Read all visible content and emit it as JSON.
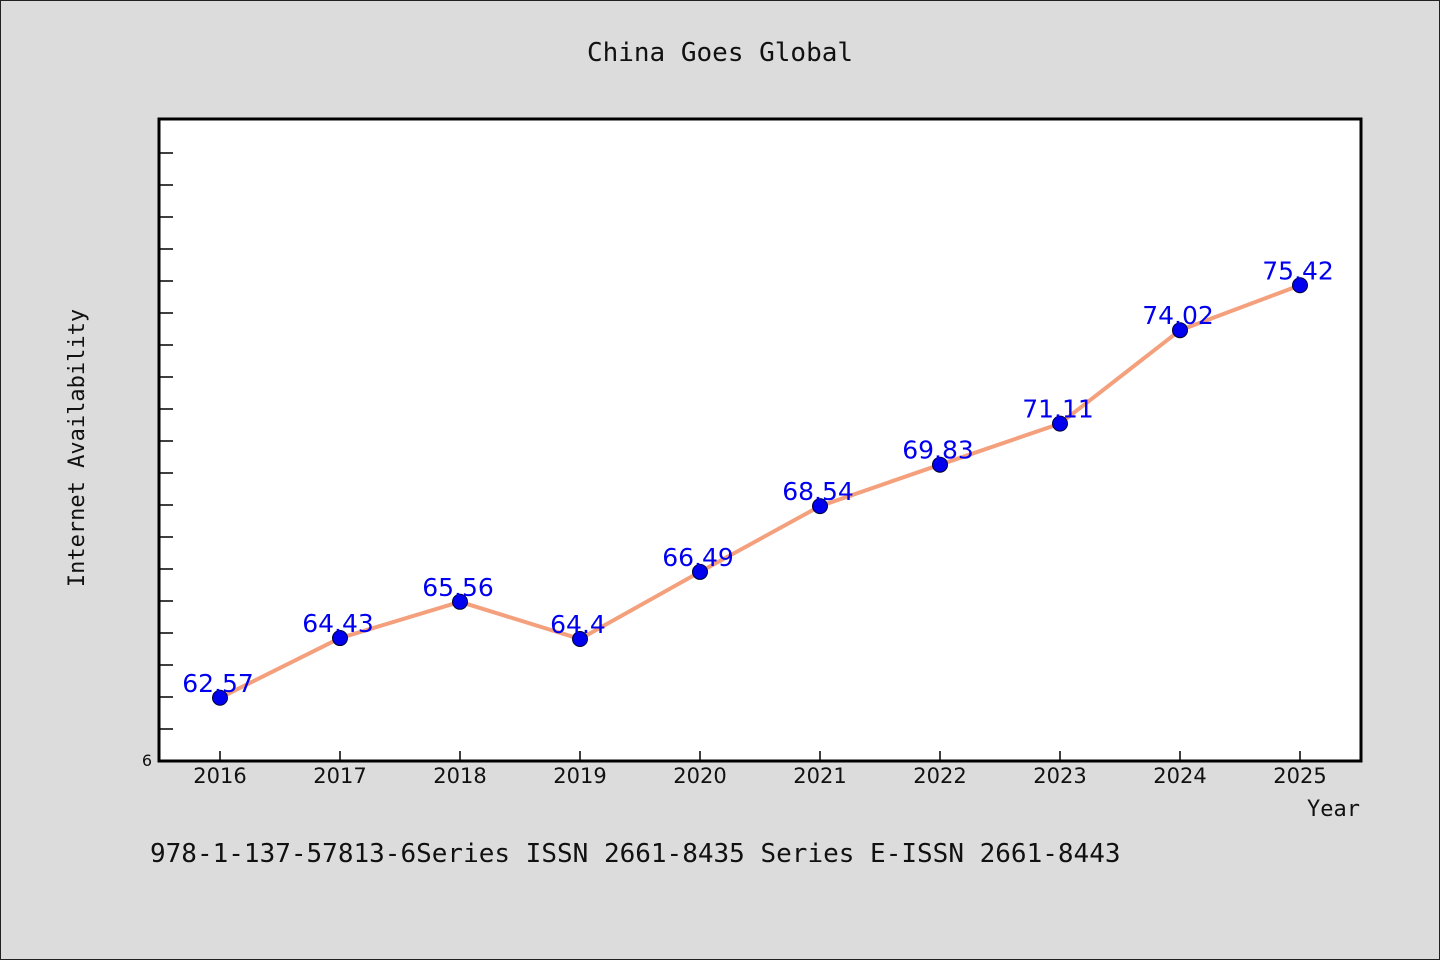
{
  "footer_text": "978-1-137-57813-6Series ISSN 2661-8435 Series E-ISSN 2661-8443",
  "chart_data": {
    "type": "line",
    "title": "China Goes Global",
    "xlabel": "Year",
    "ylabel": "Internet Availability",
    "categories": [
      "2016",
      "2017",
      "2018",
      "2019",
      "2020",
      "2021",
      "2022",
      "2023",
      "2024",
      "2025"
    ],
    "series": [
      {
        "values": [
          62.57,
          64.43,
          65.56,
          64.4,
          66.49,
          68.54,
          69.83,
          71.11,
          74.02,
          75.42
        ],
        "line_color": "#f4a07c",
        "marker_color": "#0000ee"
      }
    ],
    "data_labels": [
      "62.57",
      "64.43",
      "65.56",
      "64.4",
      "66.49",
      "68.54",
      "69.83",
      "71.11",
      "74.02",
      "75.42"
    ],
    "y_tick_label": "6",
    "ylim": [
      60.6,
      80.6
    ],
    "grid": false,
    "legend": "none",
    "colors": {
      "background": "#dcdcdc",
      "plot_background": "#ffffff",
      "axis": "#000000"
    }
  }
}
